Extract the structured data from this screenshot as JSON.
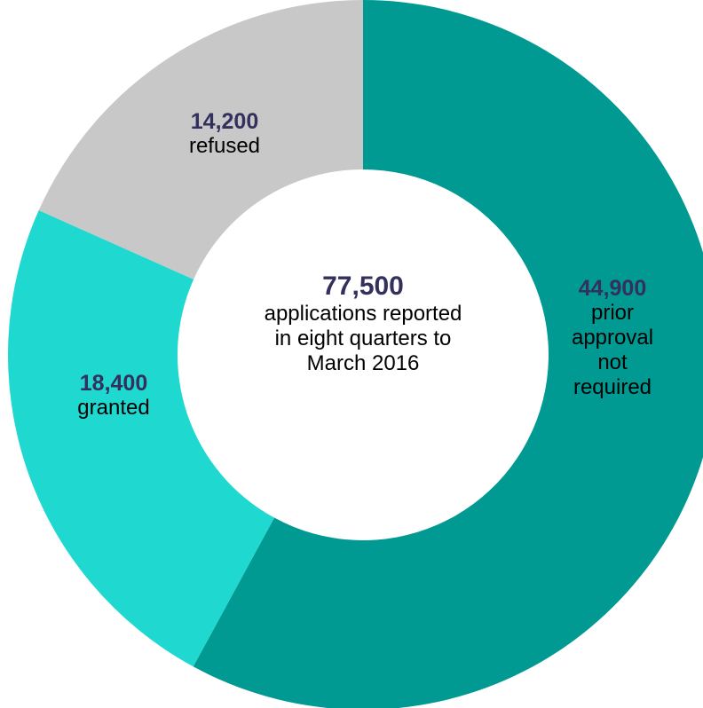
{
  "chart_data": {
    "type": "donut",
    "categories": [
      "prior approval not required",
      "granted",
      "refused"
    ],
    "values": [
      44900,
      18400,
      14200
    ],
    "value_labels": [
      "44,900",
      "18,400",
      "14,200"
    ],
    "colors": [
      "#009a93",
      "#1fd8d0",
      "#c8c8c8"
    ],
    "center_label": "77,500",
    "center_text": "applications reported in eight quarters to March 2016"
  }
}
